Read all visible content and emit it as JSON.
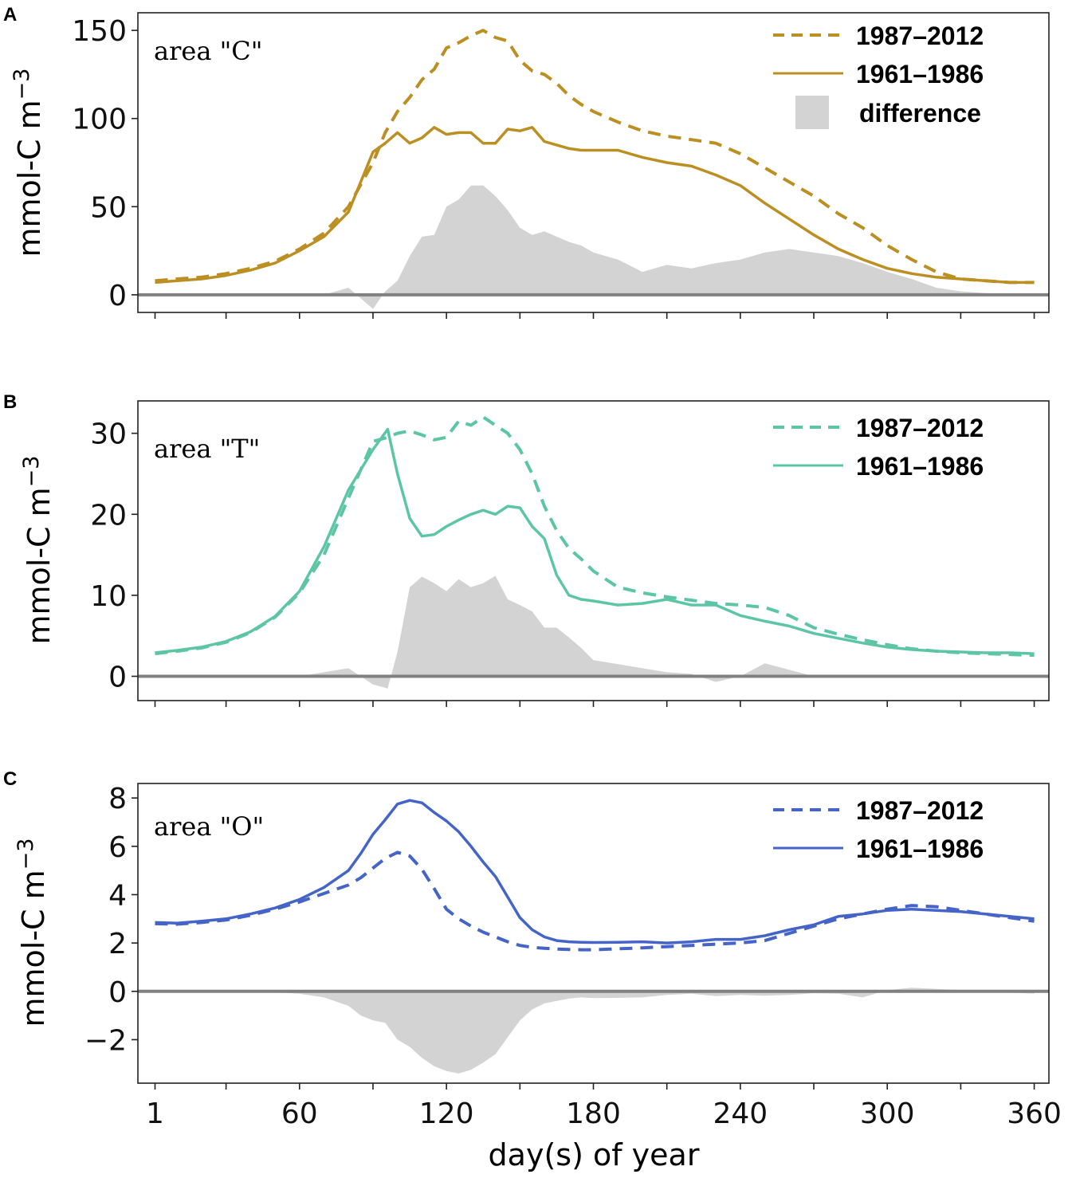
{
  "figure": {
    "xlabel": "day(s) of year",
    "x_tick_labels": [
      "1",
      "60",
      "120",
      "180",
      "240",
      "300",
      "360"
    ]
  },
  "chart_data": [
    {
      "type": "line",
      "panel_label": "A",
      "area_label": "area \"C\"",
      "ylabel": "mmol-C m",
      "ylabel_exponent": "−3",
      "ylim": [
        -10,
        160
      ],
      "yticks": [
        0,
        50,
        100,
        150
      ],
      "ytick_labels": [
        "0",
        "50",
        "100",
        "150"
      ],
      "xlim": [
        -6,
        366
      ],
      "xticks": [
        1,
        30,
        60,
        90,
        120,
        150,
        180,
        210,
        240,
        270,
        300,
        330,
        360
      ],
      "color": "#bc8f23",
      "legend": [
        "1987–2012",
        "1961–1986",
        "difference"
      ],
      "x": [
        1,
        10,
        20,
        30,
        40,
        50,
        60,
        70,
        80,
        90,
        95,
        100,
        105,
        110,
        115,
        120,
        125,
        130,
        135,
        140,
        145,
        150,
        155,
        160,
        165,
        170,
        175,
        180,
        190,
        200,
        210,
        220,
        230,
        240,
        250,
        260,
        270,
        280,
        290,
        300,
        310,
        320,
        330,
        340,
        350,
        360
      ],
      "series": [
        {
          "name": "1987–2012",
          "style": "dashed",
          "values": [
            8,
            9,
            10,
            12,
            15,
            19,
            26,
            35,
            50,
            75,
            92,
            104,
            112,
            122,
            128,
            140,
            143,
            147,
            150,
            146,
            144,
            133,
            127,
            125,
            120,
            113,
            108,
            104,
            98,
            93,
            90,
            88,
            86,
            80,
            72,
            64,
            56,
            46,
            38,
            28,
            20,
            13,
            9,
            8,
            7,
            7
          ]
        },
        {
          "name": "1961–1986",
          "style": "solid",
          "values": [
            7,
            8,
            9,
            11,
            14,
            18,
            25,
            33,
            47,
            81,
            86,
            92,
            86,
            89,
            95,
            91,
            92,
            92,
            86,
            86,
            94,
            93,
            95,
            87,
            85,
            83,
            82,
            82,
            82,
            78,
            75,
            73,
            68,
            62,
            52,
            43,
            34,
            26,
            20,
            15,
            12,
            10,
            9,
            8,
            7,
            7
          ]
        },
        {
          "name": "difference",
          "style": "area",
          "values": [
            0,
            0,
            0,
            0,
            0,
            0,
            0,
            0,
            4,
            -8,
            2,
            8,
            22,
            33,
            34,
            50,
            54,
            62,
            62,
            56,
            48,
            38,
            34,
            36,
            33,
            30,
            28,
            24,
            20,
            13,
            17,
            15,
            18,
            20,
            24,
            26,
            24,
            22,
            18,
            13,
            9,
            4,
            2,
            1,
            0,
            0
          ]
        }
      ]
    },
    {
      "type": "line",
      "panel_label": "B",
      "area_label": "area \"T\"",
      "ylabel": "mmol-C m",
      "ylabel_exponent": "−3",
      "ylim": [
        -3,
        34
      ],
      "yticks": [
        0,
        10,
        20,
        30
      ],
      "ytick_labels": [
        "0",
        "10",
        "20",
        "30"
      ],
      "xlim": [
        -6,
        366
      ],
      "xticks": [
        1,
        30,
        60,
        90,
        120,
        150,
        180,
        210,
        240,
        270,
        300,
        330,
        360
      ],
      "color": "#5cc6a4",
      "legend": [
        "1987–2012",
        "1961–1986"
      ],
      "x": [
        1,
        10,
        20,
        30,
        40,
        50,
        60,
        70,
        80,
        90,
        96,
        100,
        105,
        110,
        115,
        120,
        125,
        130,
        135,
        140,
        145,
        150,
        155,
        160,
        165,
        170,
        175,
        180,
        190,
        200,
        210,
        220,
        230,
        240,
        250,
        260,
        270,
        280,
        290,
        300,
        310,
        320,
        330,
        340,
        350,
        360
      ],
      "series": [
        {
          "name": "1987–2012",
          "style": "dashed",
          "values": [
            2.8,
            3.1,
            3.5,
            4.2,
            5.4,
            7.3,
            10.3,
            15,
            22,
            29,
            29.5,
            30,
            30.3,
            29.8,
            29.2,
            29.5,
            31.5,
            31,
            32,
            31,
            30,
            28,
            25,
            21,
            18,
            15.8,
            14.5,
            13,
            11,
            10.3,
            9.8,
            9.4,
            9,
            8.8,
            8.5,
            7.5,
            6,
            5.2,
            4.5,
            3.9,
            3.4,
            3.1,
            2.9,
            2.8,
            2.7,
            2.6
          ]
        },
        {
          "name": "1961–1986",
          "style": "solid",
          "values": [
            2.9,
            3.2,
            3.6,
            4.3,
            5.5,
            7.4,
            10.5,
            16,
            23,
            28,
            30.5,
            25,
            19.5,
            17.3,
            17.5,
            18.5,
            19.3,
            20,
            20.5,
            20,
            21,
            20.8,
            18.5,
            17,
            12.5,
            10,
            9.5,
            9.3,
            8.8,
            9,
            9.5,
            8.8,
            8.8,
            7.5,
            6.8,
            6.2,
            5.3,
            4.7,
            4.1,
            3.6,
            3.3,
            3.1,
            3,
            2.9,
            2.9,
            2.8
          ]
        },
        {
          "name": "difference",
          "style": "area",
          "values": [
            0,
            0,
            0,
            0,
            0,
            0,
            0,
            0.5,
            1,
            -1,
            -1.5,
            3,
            11,
            12.3,
            11.5,
            10.5,
            12,
            11,
            11.5,
            12.4,
            9.5,
            8.8,
            8,
            6,
            6,
            4.8,
            3.5,
            2,
            1.5,
            1,
            0.5,
            0.3,
            -0.7,
            0,
            1.6,
            0.8,
            0,
            0,
            0,
            0,
            0,
            0,
            0,
            0,
            0,
            0
          ]
        }
      ]
    },
    {
      "type": "line",
      "panel_label": "C",
      "area_label": "area \"O\"",
      "ylabel": "mmol-C m",
      "ylabel_exponent": "−3",
      "ylim": [
        -3.8,
        8.6
      ],
      "yticks": [
        -2,
        0,
        2,
        4,
        6,
        8
      ],
      "ytick_labels": [
        "−2",
        "0",
        "2",
        "4",
        "6",
        "8"
      ],
      "xlim": [
        -6,
        366
      ],
      "xticks": [
        1,
        30,
        60,
        90,
        120,
        150,
        180,
        210,
        240,
        270,
        300,
        330,
        360
      ],
      "color": "#4564c8",
      "legend": [
        "1987–2012",
        "1961–1986"
      ],
      "x": [
        1,
        10,
        20,
        30,
        40,
        50,
        60,
        70,
        80,
        85,
        90,
        95,
        100,
        105,
        110,
        115,
        120,
        125,
        130,
        135,
        140,
        145,
        150,
        155,
        160,
        165,
        170,
        175,
        180,
        190,
        200,
        210,
        220,
        230,
        240,
        250,
        260,
        270,
        280,
        290,
        300,
        310,
        320,
        330,
        340,
        350,
        360
      ],
      "series": [
        {
          "name": "1987–2012",
          "style": "dashed",
          "values": [
            2.8,
            2.78,
            2.85,
            2.95,
            3.15,
            3.4,
            3.7,
            4.05,
            4.4,
            4.7,
            5.1,
            5.5,
            5.75,
            5.6,
            5.05,
            4.25,
            3.4,
            3.0,
            2.7,
            2.45,
            2.25,
            2.05,
            1.9,
            1.82,
            1.78,
            1.75,
            1.73,
            1.72,
            1.72,
            1.76,
            1.8,
            1.85,
            1.9,
            1.95,
            2.0,
            2.1,
            2.4,
            2.7,
            3.0,
            3.2,
            3.4,
            3.55,
            3.5,
            3.35,
            3.2,
            3.05,
            2.9
          ]
        },
        {
          "name": "1961–1986",
          "style": "solid",
          "values": [
            2.85,
            2.82,
            2.9,
            3.0,
            3.2,
            3.45,
            3.8,
            4.3,
            5.0,
            5.7,
            6.5,
            7.1,
            7.75,
            7.9,
            7.8,
            7.4,
            7.05,
            6.6,
            6.0,
            5.35,
            4.75,
            3.9,
            3.05,
            2.55,
            2.25,
            2.1,
            2.05,
            2.03,
            2.02,
            2.03,
            2.05,
            2.0,
            2.05,
            2.15,
            2.15,
            2.3,
            2.55,
            2.75,
            3.1,
            3.2,
            3.35,
            3.4,
            3.35,
            3.3,
            3.2,
            3.1,
            3.0
          ]
        },
        {
          "name": "difference",
          "style": "area",
          "values": [
            -0.05,
            -0.05,
            -0.05,
            -0.05,
            -0.05,
            -0.05,
            -0.1,
            -0.25,
            -0.6,
            -1.0,
            -1.2,
            -1.3,
            -2.0,
            -2.3,
            -2.75,
            -3.1,
            -3.3,
            -3.4,
            -3.25,
            -2.95,
            -2.6,
            -1.9,
            -1.2,
            -0.75,
            -0.5,
            -0.4,
            -0.3,
            -0.25,
            -0.28,
            -0.27,
            -0.25,
            -0.15,
            -0.1,
            -0.2,
            -0.15,
            -0.18,
            -0.15,
            -0.08,
            -0.1,
            -0.25,
            0.05,
            0.15,
            0.1,
            0.05,
            0.0,
            -0.05,
            -0.1
          ]
        }
      ]
    }
  ]
}
